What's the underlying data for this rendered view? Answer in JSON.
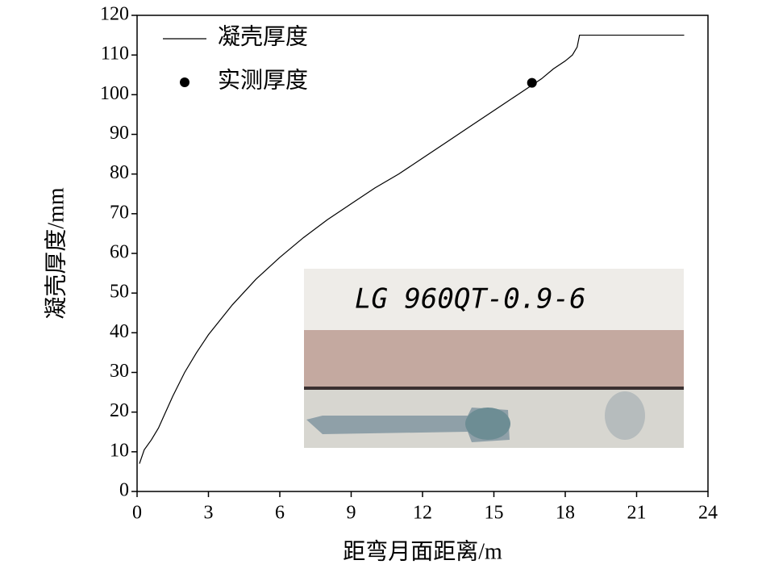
{
  "chart_data": {
    "type": "line",
    "x_label": "距弯月面距离/m",
    "y_label": "凝壳厚度/mm",
    "xlim": [
      0,
      24
    ],
    "xticks": [
      0,
      3,
      6,
      9,
      12,
      15,
      18,
      21,
      24
    ],
    "ylim": [
      0,
      120
    ],
    "yticks": [
      0,
      10,
      20,
      30,
      40,
      50,
      60,
      70,
      80,
      90,
      100,
      110,
      120
    ],
    "legend": "upper left",
    "series": [
      {
        "name": "凝壳厚度",
        "kind": "line",
        "color": "#000000",
        "x": [
          0.1,
          0.3,
          0.6,
          0.9,
          1.2,
          1.5,
          2,
          2.5,
          3,
          4,
          5,
          6,
          7,
          8,
          9,
          10,
          11,
          12,
          13,
          14,
          15,
          16,
          17,
          17.5,
          18,
          18.3,
          18.5,
          18.6,
          23
        ],
        "values": [
          7,
          10.5,
          13,
          16,
          20,
          24,
          30,
          35,
          39.5,
          47,
          53.5,
          59,
          64,
          68.5,
          72.5,
          76.5,
          80,
          84,
          88,
          92,
          96,
          100,
          104,
          106.5,
          108.5,
          110,
          112,
          115,
          115
        ]
      },
      {
        "name": "实测厚度",
        "kind": "scatter",
        "color": "#000000",
        "x": [
          16.6
        ],
        "values": [
          103
        ]
      }
    ],
    "inset_photo_label": "LG 960QT-0.9-6"
  }
}
